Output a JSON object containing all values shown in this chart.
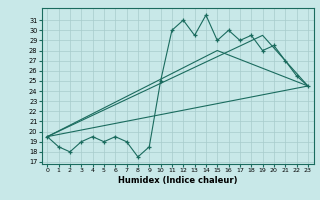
{
  "xlabel": "Humidex (Indice chaleur)",
  "background_color": "#c8e8e8",
  "line_color": "#1a6b5e",
  "grid_color": "#a8cccc",
  "xlim": [
    -0.5,
    23.5
  ],
  "ylim": [
    16.8,
    32.2
  ],
  "yticks": [
    17,
    18,
    19,
    20,
    21,
    22,
    23,
    24,
    25,
    26,
    27,
    28,
    29,
    30,
    31
  ],
  "xticks": [
    0,
    1,
    2,
    3,
    4,
    5,
    6,
    7,
    8,
    9,
    10,
    11,
    12,
    13,
    14,
    15,
    16,
    17,
    18,
    19,
    20,
    21,
    22,
    23
  ],
  "line1_x": [
    0,
    1,
    2,
    3,
    4,
    5,
    6,
    7,
    8,
    9,
    10,
    11,
    12,
    13,
    14,
    15,
    16,
    17,
    18,
    19,
    20,
    21,
    22,
    23
  ],
  "line1_y": [
    19.5,
    18.5,
    18.0,
    19.0,
    19.5,
    19.0,
    19.5,
    19.0,
    17.5,
    18.5,
    25.0,
    30.0,
    31.0,
    29.5,
    31.5,
    29.0,
    30.0,
    29.0,
    29.5,
    28.0,
    28.5,
    27.0,
    25.5,
    24.5
  ],
  "line2_x": [
    0,
    23
  ],
  "line2_y": [
    19.5,
    24.5
  ],
  "line3_x": [
    0,
    15,
    23
  ],
  "line3_y": [
    19.5,
    28.0,
    24.5
  ],
  "line4_x": [
    0,
    19,
    23
  ],
  "line4_y": [
    19.5,
    29.5,
    24.5
  ]
}
